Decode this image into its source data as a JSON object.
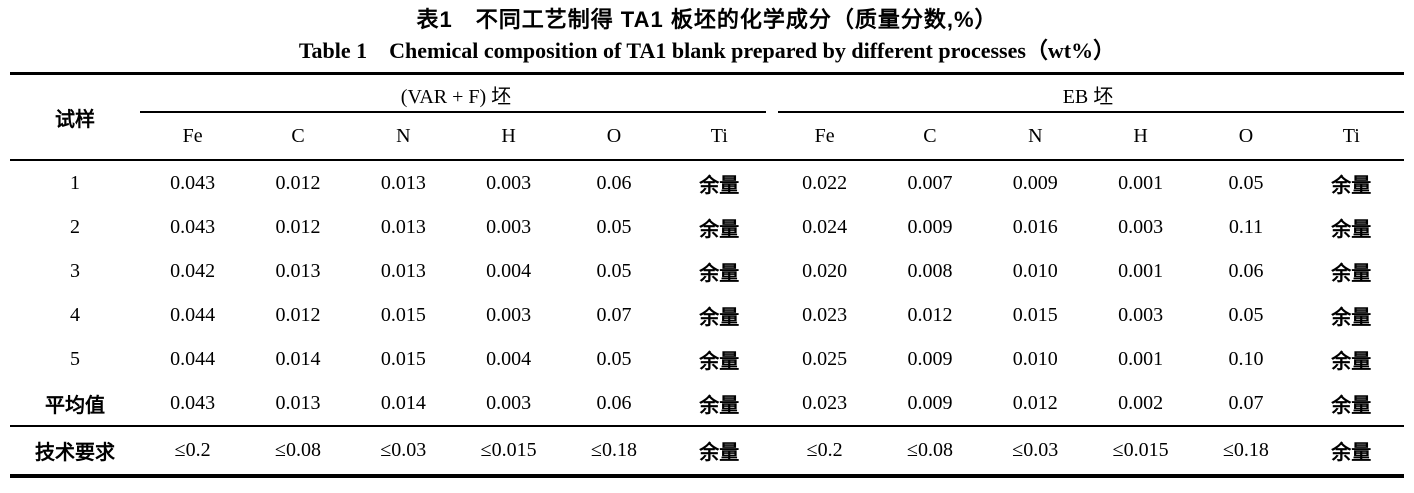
{
  "title": {
    "zh": "表1　不同工艺制得 TA1 板坯的化学成分（质量分数,%）",
    "en": "Table 1　Chemical composition of TA1 blank prepared by different processes（wt%）"
  },
  "table": {
    "sample_header": "试样",
    "groups": [
      {
        "label": "(VAR + F) 坯"
      },
      {
        "label": "EB 坯"
      }
    ],
    "elements": [
      "Fe",
      "C",
      "N",
      "H",
      "O",
      "Ti"
    ],
    "rows": [
      {
        "label": "1",
        "var_f": [
          "0.043",
          "0.012",
          "0.013",
          "0.003",
          "0.06",
          "余量"
        ],
        "eb": [
          "0.022",
          "0.007",
          "0.009",
          "0.001",
          "0.05",
          "余量"
        ]
      },
      {
        "label": "2",
        "var_f": [
          "0.043",
          "0.012",
          "0.013",
          "0.003",
          "0.05",
          "余量"
        ],
        "eb": [
          "0.024",
          "0.009",
          "0.016",
          "0.003",
          "0.11",
          "余量"
        ]
      },
      {
        "label": "3",
        "var_f": [
          "0.042",
          "0.013",
          "0.013",
          "0.004",
          "0.05",
          "余量"
        ],
        "eb": [
          "0.020",
          "0.008",
          "0.010",
          "0.001",
          "0.06",
          "余量"
        ]
      },
      {
        "label": "4",
        "var_f": [
          "0.044",
          "0.012",
          "0.015",
          "0.003",
          "0.07",
          "余量"
        ],
        "eb": [
          "0.023",
          "0.012",
          "0.015",
          "0.003",
          "0.05",
          "余量"
        ]
      },
      {
        "label": "5",
        "var_f": [
          "0.044",
          "0.014",
          "0.015",
          "0.004",
          "0.05",
          "余量"
        ],
        "eb": [
          "0.025",
          "0.009",
          "0.010",
          "0.001",
          "0.10",
          "余量"
        ]
      },
      {
        "label": "平均值",
        "var_f": [
          "0.043",
          "0.013",
          "0.014",
          "0.003",
          "0.06",
          "余量"
        ],
        "eb": [
          "0.023",
          "0.009",
          "0.012",
          "0.002",
          "0.07",
          "余量"
        ]
      },
      {
        "label": "技术要求",
        "var_f": [
          "≤0.2",
          "≤0.08",
          "≤0.03",
          "≤0.015",
          "≤0.18",
          "余量"
        ],
        "eb": [
          "≤0.2",
          "≤0.08",
          "≤0.03",
          "≤0.015",
          "≤0.18",
          "余量"
        ]
      }
    ]
  }
}
